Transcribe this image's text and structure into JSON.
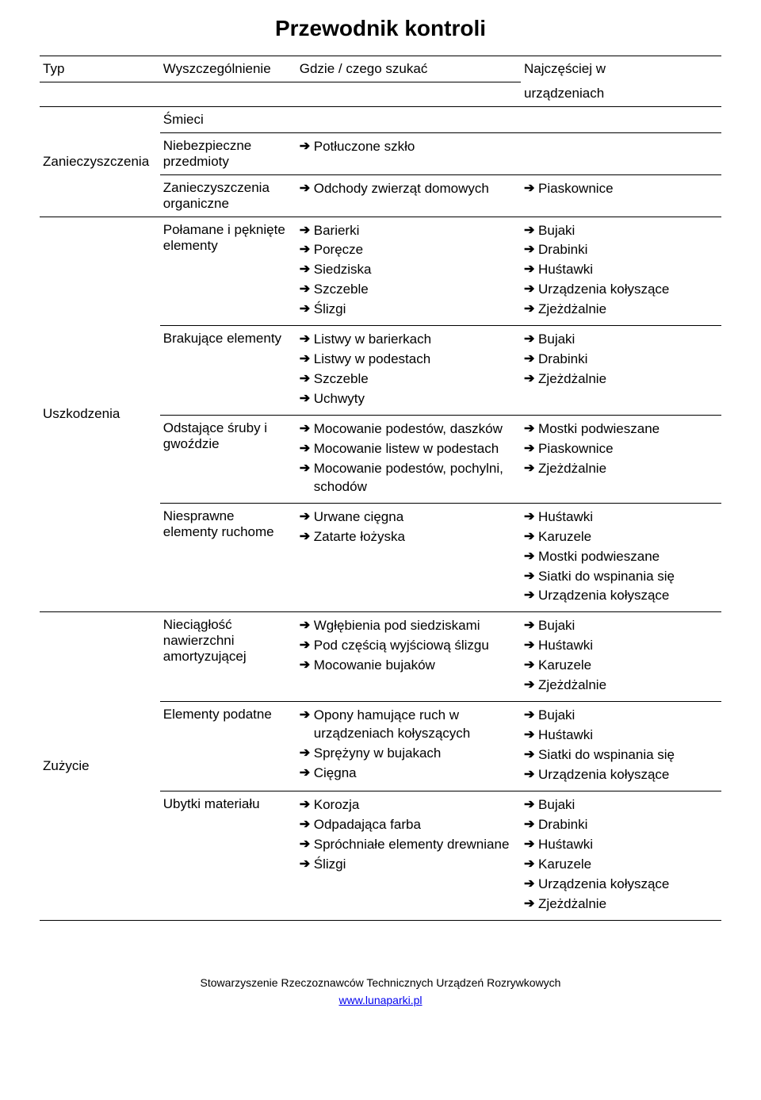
{
  "title": "Przewodnik kontroli",
  "columns": {
    "type": "Typ",
    "spec": "Wyszczególnienie",
    "where": "Gdzie / czego szukać",
    "devices": "Najczęściej w",
    "devices_sub": "urządzeniach"
  },
  "groups": [
    {
      "type": "Zanieczyszczenia",
      "rows": [
        {
          "spec": "Śmieci",
          "where": [],
          "devices": []
        },
        {
          "spec": "Niebezpieczne przedmioty",
          "where": [
            "Potłuczone szkło"
          ],
          "devices": []
        },
        {
          "spec": "Zanieczyszczenia organiczne",
          "where": [
            "Odchody zwierząt domowych"
          ],
          "devices": [
            "Piaskownice"
          ]
        }
      ]
    },
    {
      "type": "Uszkodzenia",
      "rows": [
        {
          "spec": "Połamane i pęknięte elementy",
          "where": [
            "Barierki",
            "Poręcze",
            "Siedziska",
            "Szczeble",
            "Ślizgi"
          ],
          "devices": [
            "Bujaki",
            "Drabinki",
            "Huśtawki",
            "Urządzenia kołyszące",
            "Zjeżdżalnie"
          ]
        },
        {
          "spec": "Brakujące elementy",
          "where": [
            "Listwy w barierkach",
            "Listwy w podestach",
            "Szczeble",
            "Uchwyty"
          ],
          "devices": [
            "Bujaki",
            "Drabinki",
            "Zjeżdżalnie"
          ]
        },
        {
          "spec": "Odstające śruby i gwoździe",
          "where": [
            "Mocowanie podestów, daszków",
            "Mocowanie listew w podestach",
            "Mocowanie podestów, pochylni, schodów"
          ],
          "devices": [
            "Mostki podwieszane",
            "Piaskownice",
            "Zjeżdżalnie"
          ]
        },
        {
          "spec": "Niesprawne elementy ruchome",
          "where": [
            "Urwane cięgna",
            "Zatarte łożyska"
          ],
          "devices": [
            "Huśtawki",
            "Karuzele",
            "Mostki podwieszane",
            "Siatki do wspinania się",
            "Urządzenia kołyszące"
          ]
        }
      ]
    },
    {
      "type": "Zużycie",
      "rows": [
        {
          "spec": "Nieciągłość nawierzchni amortyzującej",
          "where": [
            "Wgłębienia pod siedziskami",
            "Pod częścią wyjściową ślizgu",
            "Mocowanie bujaków"
          ],
          "devices": [
            "Bujaki",
            "Huśtawki",
            "Karuzele",
            "Zjeżdżalnie"
          ]
        },
        {
          "spec": "Elementy podatne",
          "where": [
            "Opony hamujące ruch w urządzeniach kołyszących",
            "Sprężyny w bujakach",
            "Cięgna"
          ],
          "devices": [
            "Bujaki",
            "Huśtawki",
            "Siatki do wspinania się",
            "Urządzenia kołyszące"
          ]
        },
        {
          "spec": "Ubytki materiału",
          "where": [
            "Korozja",
            "Odpadająca farba",
            "Spróchniałe elementy drewniane",
            "Ślizgi"
          ],
          "devices": [
            "Bujaki",
            "Drabinki",
            "Huśtawki",
            "Karuzele",
            "Urządzenia kołyszące",
            "Zjeżdżalnie"
          ]
        }
      ]
    }
  ],
  "footer": {
    "org": "Stowarzyszenie Rzeczoznawców Technicznych Urządzeń Rozrywkowych",
    "url": "www.lunaparki.pl"
  }
}
